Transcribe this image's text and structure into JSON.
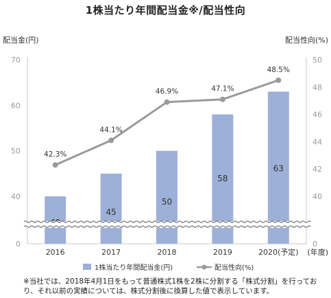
{
  "title": "1株当たり年間配当金※/配当性向",
  "chart_data": {
    "type": "bar",
    "title": "1株当たり年間配当金※/配当性向",
    "categories": [
      "2016",
      "2017",
      "2018",
      "2019",
      "2020(予定)"
    ],
    "x_unit_label": "(年度)",
    "left_axis": {
      "label": "配当金(円)",
      "ylim": [
        0,
        70
      ],
      "ticks": [
        "0",
        "40",
        "50",
        "60",
        "70"
      ],
      "broken_below": 40
    },
    "right_axis": {
      "label": "配当性向(%)",
      "ylim": [
        0,
        50
      ],
      "ticks": [
        "0",
        "40",
        "42",
        "44",
        "46",
        "48",
        "50"
      ],
      "broken_below": 40
    },
    "series": [
      {
        "name": "1株当たり年間配当金(円)",
        "type": "bar",
        "axis": "left",
        "color": "#9db0d8",
        "values": [
          40,
          45,
          50,
          58,
          63
        ],
        "data_labels": [
          "40",
          "45",
          "50",
          "58",
          "63"
        ]
      },
      {
        "name": "配当性向(%)",
        "type": "line",
        "axis": "right",
        "color": "#9a9a9a",
        "values": [
          42.3,
          44.1,
          46.9,
          47.1,
          48.5
        ],
        "data_labels": [
          "42.3%",
          "44.1%",
          "46.9%",
          "47.1%",
          "48.5%"
        ]
      }
    ],
    "legend_position": "bottom",
    "grid": false
  },
  "footnote": "※当社では、2018年4月1日をもって普通株式1株を2株に分割する「株式分割」を行っており、それ以前の実績については、株式分割後に換算した値で表示しています。"
}
